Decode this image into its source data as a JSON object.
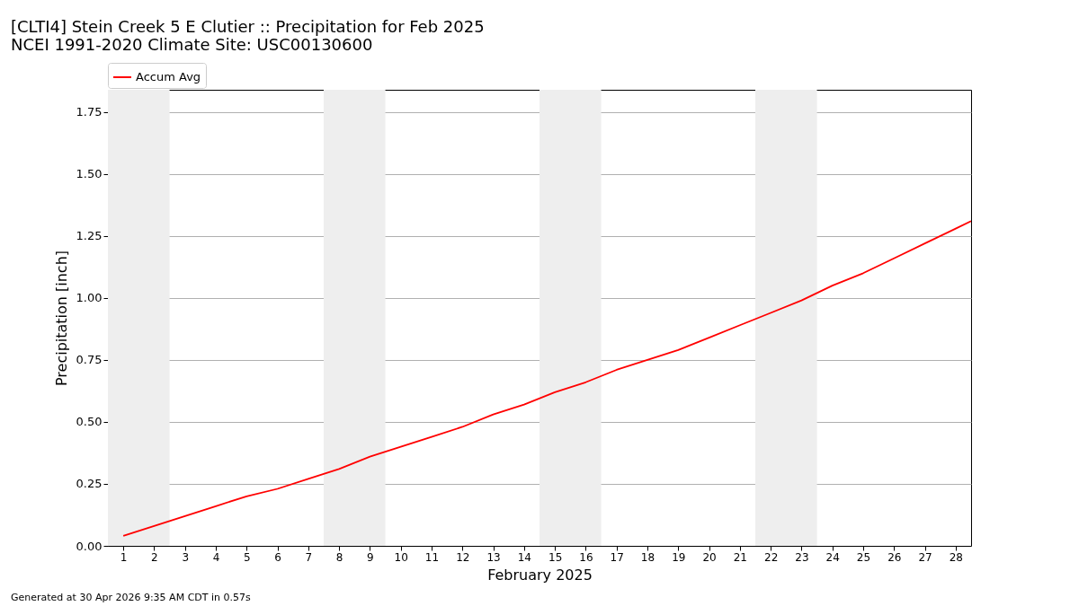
{
  "chart_data": {
    "type": "line",
    "title": "[CLTI4] Stein Creek 5 E Clutier :: Precipitation for Feb 2025",
    "subtitle": "NCEI 1991-2020 Climate Site: USC00130600",
    "xlabel": "February 2025",
    "ylabel": "Precipitation [inch]",
    "x": [
      1,
      2,
      3,
      4,
      5,
      6,
      7,
      8,
      9,
      10,
      11,
      12,
      13,
      14,
      15,
      16,
      17,
      18,
      19,
      20,
      21,
      22,
      23,
      24,
      25,
      26,
      27,
      28,
      28.5
    ],
    "series": [
      {
        "name": "Accum Avg",
        "color": "#ff0000",
        "values": [
          0.04,
          0.08,
          0.12,
          0.16,
          0.2,
          0.23,
          0.27,
          0.31,
          0.36,
          0.4,
          0.44,
          0.48,
          0.53,
          0.57,
          0.62,
          0.66,
          0.71,
          0.75,
          0.79,
          0.84,
          0.89,
          0.94,
          0.99,
          1.05,
          1.1,
          1.16,
          1.22,
          1.28,
          1.31
        ]
      }
    ],
    "xlim": [
      0.5,
      28.5
    ],
    "xticks": [
      1,
      2,
      3,
      4,
      5,
      6,
      7,
      8,
      9,
      10,
      11,
      12,
      13,
      14,
      15,
      16,
      17,
      18,
      19,
      20,
      21,
      22,
      23,
      24,
      25,
      26,
      27,
      28
    ],
    "ylim": [
      0,
      1.84
    ],
    "yticks": [
      {
        "value": 0,
        "label": "0.00"
      },
      {
        "value": 0.25,
        "label": "0.25"
      },
      {
        "value": 0.5,
        "label": "0.50"
      },
      {
        "value": 0.75,
        "label": "0.75"
      },
      {
        "value": 1.0,
        "label": "1.00"
      },
      {
        "value": 1.25,
        "label": "1.25"
      },
      {
        "value": 1.5,
        "label": "1.50"
      },
      {
        "value": 1.75,
        "label": "1.75"
      }
    ],
    "bands": [
      {
        "axis": "x",
        "from": 0.5,
        "to": 2.5,
        "color": "#eeeeee"
      },
      {
        "axis": "x",
        "from": 7.5,
        "to": 9.5,
        "color": "#eeeeee"
      },
      {
        "axis": "x",
        "from": 14.5,
        "to": 16.5,
        "color": "#eeeeee"
      },
      {
        "axis": "x",
        "from": 21.5,
        "to": 23.5,
        "color": "#eeeeee"
      }
    ],
    "grid": "y",
    "legend": "top",
    "marker": "none",
    "line_style": "solid",
    "annotations": [
      "Generated at 30 Apr 2026 9:35 AM CDT in 0.57s"
    ]
  }
}
